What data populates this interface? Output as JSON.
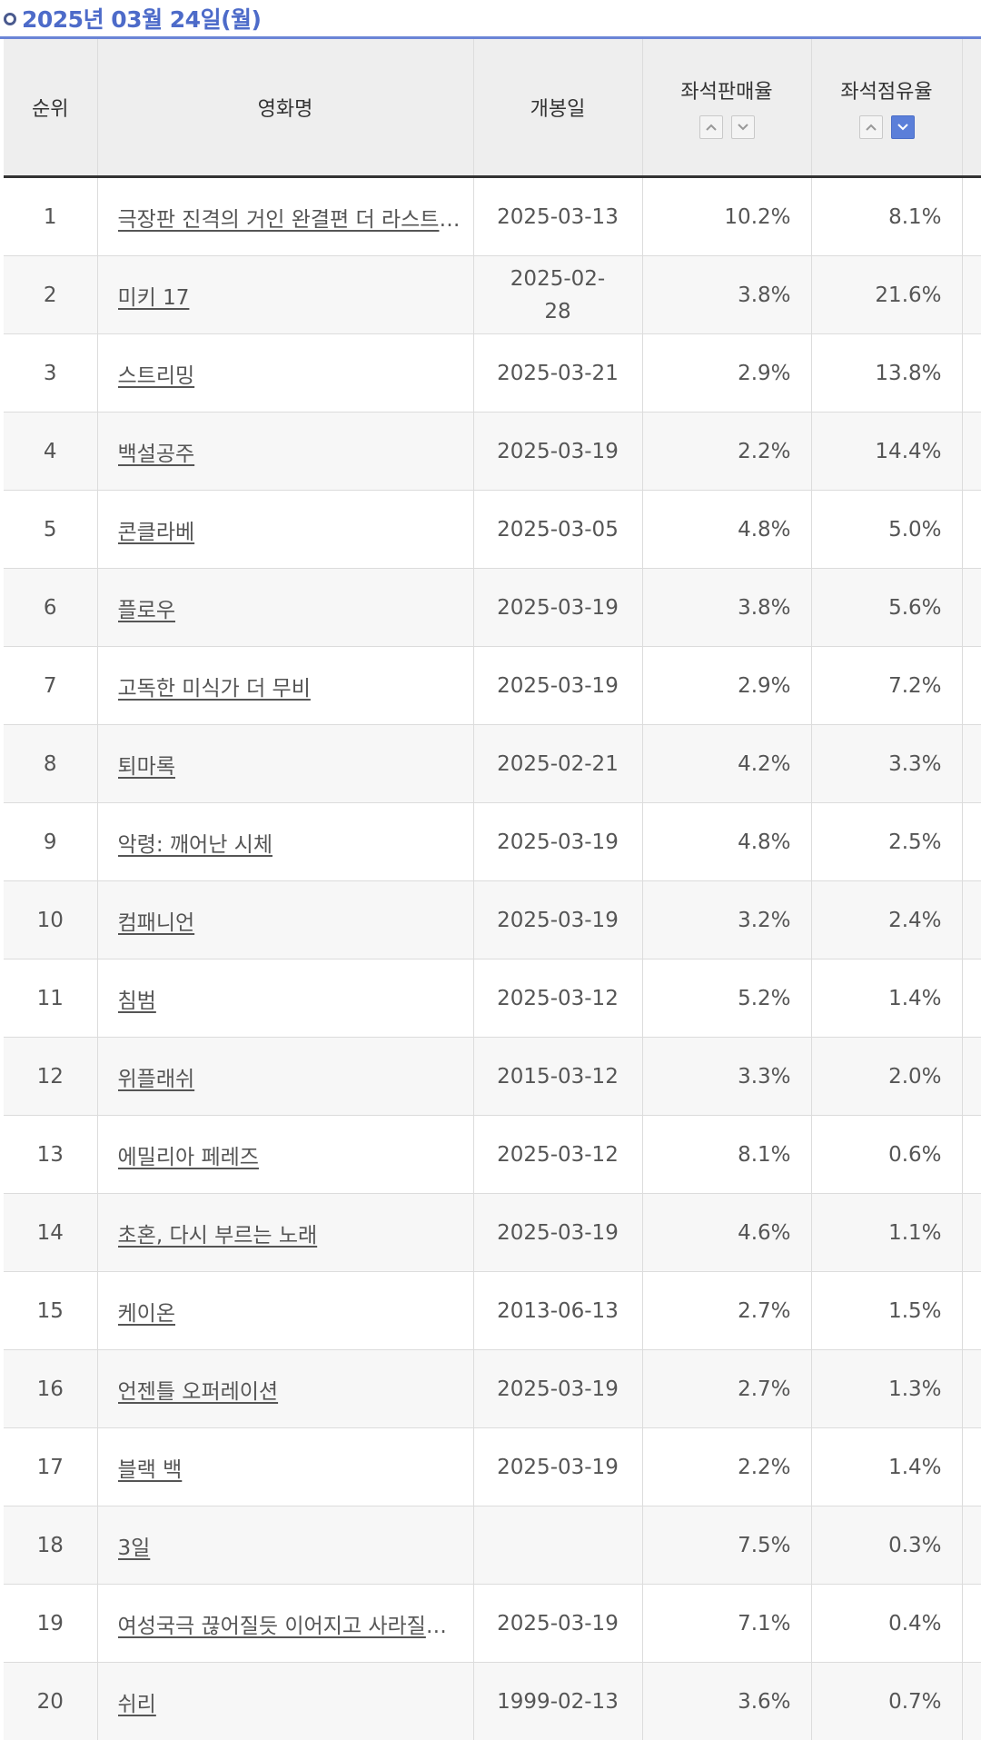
{
  "header": {
    "title": "2025년 03월 24일(월)"
  },
  "columns": {
    "rank": "순위",
    "title": "영화명",
    "release": "개봉일",
    "sales": "좌석판매율",
    "occupancy": "좌석점유율"
  },
  "sort": {
    "up_icon": "chevron-up-icon",
    "down_icon": "chevron-down-icon",
    "active_column": "occupancy",
    "active_direction": "down"
  },
  "rows": [
    {
      "rank": "1",
      "title": "극장판 진격의 거인 완결편 더 라스트 어택",
      "release": "2025-03-13",
      "sales": "10.2%",
      "occupancy": "8.1%"
    },
    {
      "rank": "2",
      "title": "미키 17",
      "release": "2025-02-28",
      "sales": "3.8%",
      "occupancy": "21.6%"
    },
    {
      "rank": "3",
      "title": "스트리밍",
      "release": "2025-03-21",
      "sales": "2.9%",
      "occupancy": "13.8%"
    },
    {
      "rank": "4",
      "title": "백설공주",
      "release": "2025-03-19",
      "sales": "2.2%",
      "occupancy": "14.4%"
    },
    {
      "rank": "5",
      "title": "콘클라베",
      "release": "2025-03-05",
      "sales": "4.8%",
      "occupancy": "5.0%"
    },
    {
      "rank": "6",
      "title": "플로우",
      "release": "2025-03-19",
      "sales": "3.8%",
      "occupancy": "5.6%"
    },
    {
      "rank": "7",
      "title": "고독한 미식가 더 무비",
      "release": "2025-03-19",
      "sales": "2.9%",
      "occupancy": "7.2%"
    },
    {
      "rank": "8",
      "title": "퇴마록",
      "release": "2025-02-21",
      "sales": "4.2%",
      "occupancy": "3.3%"
    },
    {
      "rank": "9",
      "title": "악령: 깨어난 시체",
      "release": "2025-03-19",
      "sales": "4.8%",
      "occupancy": "2.5%"
    },
    {
      "rank": "10",
      "title": "컴패니언",
      "release": "2025-03-19",
      "sales": "3.2%",
      "occupancy": "2.4%"
    },
    {
      "rank": "11",
      "title": "침범",
      "release": "2025-03-12",
      "sales": "5.2%",
      "occupancy": "1.4%"
    },
    {
      "rank": "12",
      "title": "위플래쉬",
      "release": "2015-03-12",
      "sales": "3.3%",
      "occupancy": "2.0%"
    },
    {
      "rank": "13",
      "title": "에밀리아 페레즈",
      "release": "2025-03-12",
      "sales": "8.1%",
      "occupancy": "0.6%"
    },
    {
      "rank": "14",
      "title": "초혼, 다시 부르는 노래",
      "release": "2025-03-19",
      "sales": "4.6%",
      "occupancy": "1.1%"
    },
    {
      "rank": "15",
      "title": "케이온",
      "release": "2013-06-13",
      "sales": "2.7%",
      "occupancy": "1.5%"
    },
    {
      "rank": "16",
      "title": "언젠틀 오퍼레이션",
      "release": "2025-03-19",
      "sales": "2.7%",
      "occupancy": "1.3%"
    },
    {
      "rank": "17",
      "title": "블랙 백",
      "release": "2025-03-19",
      "sales": "2.2%",
      "occupancy": "1.4%"
    },
    {
      "rank": "18",
      "title": "3일",
      "release": "",
      "sales": "7.5%",
      "occupancy": "0.3%"
    },
    {
      "rank": "19",
      "title": "여성국극 끊어질듯 이어지고 사라질듯 영원하다",
      "release": "2025-03-19",
      "sales": "7.1%",
      "occupancy": "0.4%"
    },
    {
      "rank": "20",
      "title": "쉬리",
      "release": "1999-02-13",
      "sales": "3.6%",
      "occupancy": "0.7%"
    }
  ]
}
